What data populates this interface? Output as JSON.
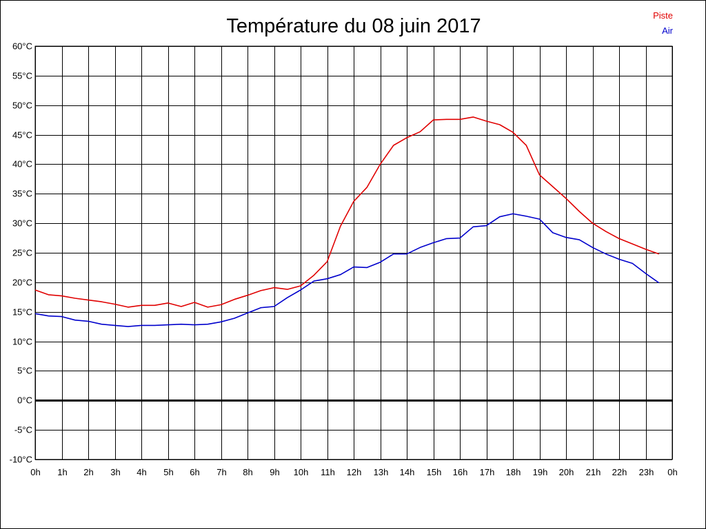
{
  "chart_data": {
    "type": "line",
    "title": "Température du 08 juin 2017",
    "xlabel": "",
    "ylabel": "",
    "x_ticks": [
      "0h",
      "1h",
      "2h",
      "3h",
      "4h",
      "5h",
      "6h",
      "7h",
      "8h",
      "9h",
      "10h",
      "11h",
      "12h",
      "13h",
      "14h",
      "15h",
      "16h",
      "17h",
      "18h",
      "19h",
      "20h",
      "21h",
      "22h",
      "23h",
      "0h"
    ],
    "y_ticks": [
      "-10°C",
      "-5°C",
      "0°C",
      "5°C",
      "10°C",
      "15°C",
      "20°C",
      "25°C",
      "30°C",
      "35°C",
      "40°C",
      "45°C",
      "50°C",
      "55°C",
      "60°C"
    ],
    "xlim": [
      0,
      24
    ],
    "ylim": [
      -10,
      60
    ],
    "grid": true,
    "legend_position": "top-right",
    "zero_line": 0,
    "colors": {
      "Piste": "#e00000",
      "Air": "#0000cc",
      "grid": "#000000"
    },
    "x": [
      0,
      0.5,
      1,
      1.5,
      2,
      2.5,
      3,
      3.5,
      4,
      4.5,
      5,
      5.5,
      6,
      6.5,
      7,
      7.5,
      8,
      8.5,
      9,
      9.5,
      10,
      10.5,
      11,
      11.5,
      12,
      12.5,
      13,
      13.5,
      14,
      14.5,
      15,
      15.5,
      16,
      16.5,
      17,
      17.5,
      18,
      18.5,
      19,
      19.5,
      20,
      20.5,
      21,
      21.5,
      22,
      22.5,
      23,
      23.5
    ],
    "series": [
      {
        "name": "Piste",
        "values": [
          18.7,
          17.9,
          17.7,
          17.3,
          17.0,
          16.7,
          16.3,
          15.8,
          16.1,
          16.1,
          16.5,
          15.9,
          16.6,
          15.8,
          16.2,
          17.1,
          17.8,
          18.6,
          19.1,
          18.8,
          19.4,
          21.2,
          23.5,
          29.5,
          33.7,
          36.1,
          40.0,
          43.2,
          44.5,
          45.5,
          47.5,
          47.6,
          47.6,
          48.0,
          47.3,
          46.7,
          45.4,
          43.2,
          38.2,
          36.2,
          34.2,
          32.0,
          30.0,
          28.6,
          27.4,
          26.5,
          25.6,
          24.8
        ]
      },
      {
        "name": "Air",
        "values": [
          14.7,
          14.3,
          14.2,
          13.6,
          13.4,
          12.9,
          12.7,
          12.5,
          12.7,
          12.7,
          12.8,
          12.9,
          12.8,
          12.9,
          13.3,
          13.9,
          14.8,
          15.7,
          15.9,
          17.4,
          18.7,
          20.2,
          20.6,
          21.3,
          22.6,
          22.5,
          23.4,
          24.8,
          24.8,
          25.9,
          26.7,
          27.4,
          27.5,
          29.4,
          29.6,
          31.1,
          31.6,
          31.2,
          30.7,
          28.4,
          27.6,
          27.2,
          25.9,
          24.8,
          23.9,
          23.2,
          21.5,
          19.9
        ]
      }
    ]
  }
}
